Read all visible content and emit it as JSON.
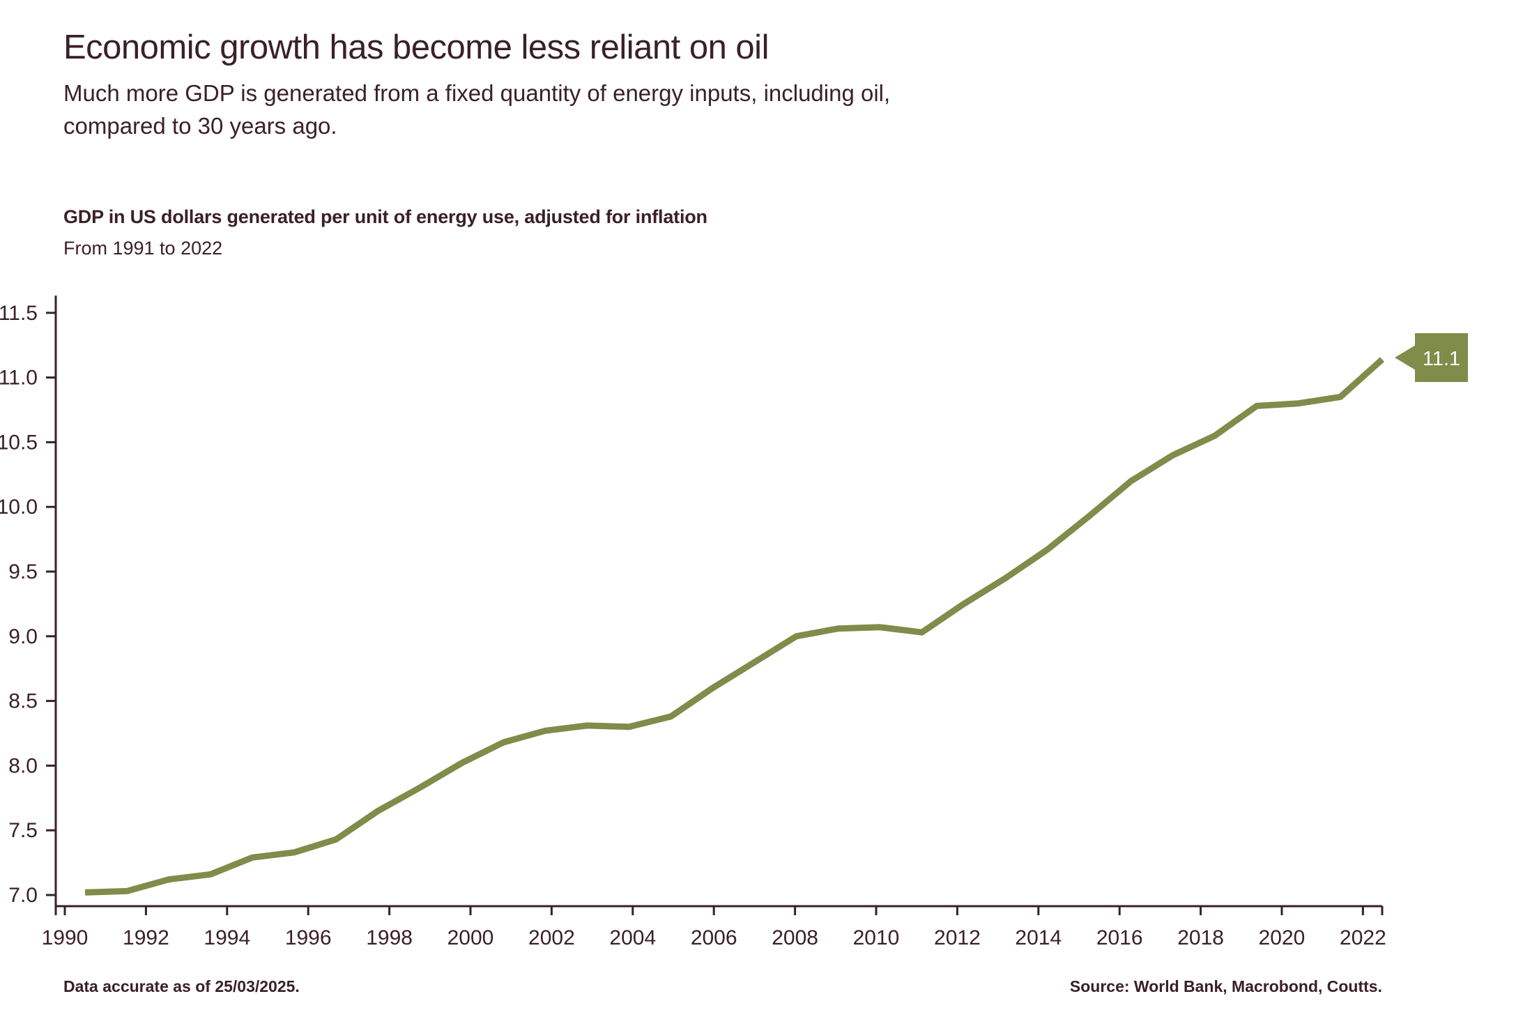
{
  "header": {
    "title": "Economic growth has become less reliant on oil",
    "subtitle_line1": "Much more GDP is generated from a fixed quantity of energy inputs, including oil,",
    "subtitle_line2": "compared to 30 years ago."
  },
  "chart": {
    "heading": "GDP in US dollars generated per unit of energy use, adjusted for inflation",
    "subheading": "From 1991 to 2022"
  },
  "footer": {
    "left": "Data accurate as of 25/03/2025.",
    "right": "Source: World Bank, Macrobond, Coutts."
  },
  "colors": {
    "line": "#7F8C4A",
    "callout_fill": "#7F8C4A",
    "callout_text": "#FFFFFF",
    "text": "#3A2027"
  },
  "chart_data": {
    "type": "line",
    "title": "GDP in US dollars generated per unit of energy use, adjusted for inflation",
    "subtitle": "From 1991 to 2022",
    "x": [
      1991,
      1992,
      1993,
      1994,
      1995,
      1996,
      1997,
      1998,
      1999,
      2000,
      2001,
      2002,
      2003,
      2004,
      2005,
      2006,
      2007,
      2008,
      2009,
      2010,
      2011,
      2012,
      2013,
      2014,
      2015,
      2016,
      2017,
      2018,
      2019,
      2020,
      2021,
      2022
    ],
    "series": [
      {
        "name": "GDP in US dollars generated per unit of energy use, adjusted for inflation",
        "values": [
          7.02,
          7.03,
          7.12,
          7.16,
          7.29,
          7.33,
          7.43,
          7.65,
          7.83,
          8.02,
          8.18,
          8.27,
          8.31,
          8.3,
          8.38,
          8.6,
          8.8,
          9.0,
          9.06,
          9.07,
          9.03,
          9.25,
          9.45,
          9.67,
          9.93,
          10.2,
          10.4,
          10.55,
          10.78,
          10.8,
          10.85,
          11.14
        ]
      }
    ],
    "ylim": [
      7.0,
      11.5
    ],
    "ytick_step": 0.5,
    "yticks": [
      "7.0",
      "7.5",
      "8.0",
      "8.5",
      "9.0",
      "9.5",
      "10.0",
      "10.5",
      "11.0",
      "11.5"
    ],
    "xticks": [
      1990,
      1992,
      1994,
      1996,
      1998,
      2000,
      2002,
      2004,
      2006,
      2008,
      2010,
      2012,
      2014,
      2016,
      2018,
      2020,
      2022
    ],
    "grid": false,
    "legend": "none",
    "last_value_label": "11.1"
  }
}
